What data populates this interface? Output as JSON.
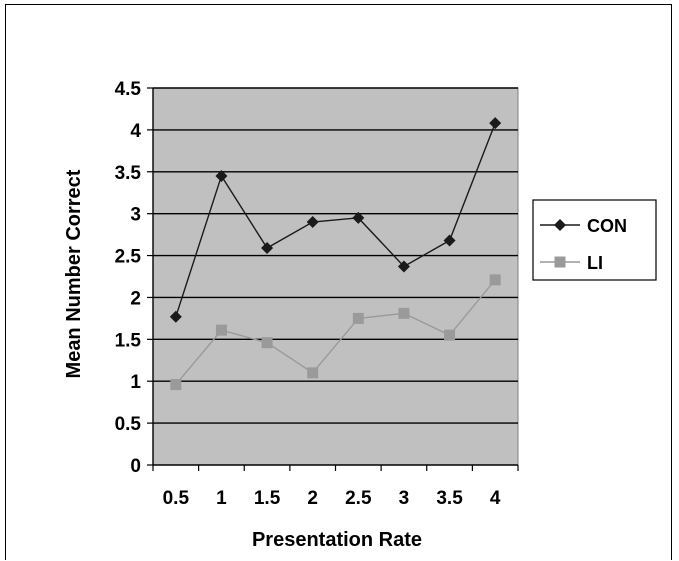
{
  "chart_data": {
    "type": "line",
    "xlabel": "Presentation Rate",
    "ylabel": "Mean Number Correct",
    "x": [
      "0.5",
      "1",
      "1.5",
      "2",
      "2.5",
      "3",
      "3.5",
      "4"
    ],
    "ylim": [
      0,
      4.5
    ],
    "yticks": [
      "0",
      "0.5",
      "1",
      "1.5",
      "2",
      "2.5",
      "3",
      "3.5",
      "4",
      "4.5"
    ],
    "grid": true,
    "legend_position": "right",
    "plot_background": "#c0c0c0",
    "series": [
      {
        "name": "CON",
        "color": "#1a1a1a",
        "marker": "diamond",
        "values": [
          1.77,
          3.45,
          2.59,
          2.9,
          2.95,
          2.37,
          2.68,
          4.08
        ]
      },
      {
        "name": "LI",
        "color": "#9a9a9a",
        "marker": "square",
        "values": [
          0.96,
          1.61,
          1.46,
          1.1,
          1.75,
          1.81,
          1.55,
          2.21
        ]
      }
    ]
  }
}
